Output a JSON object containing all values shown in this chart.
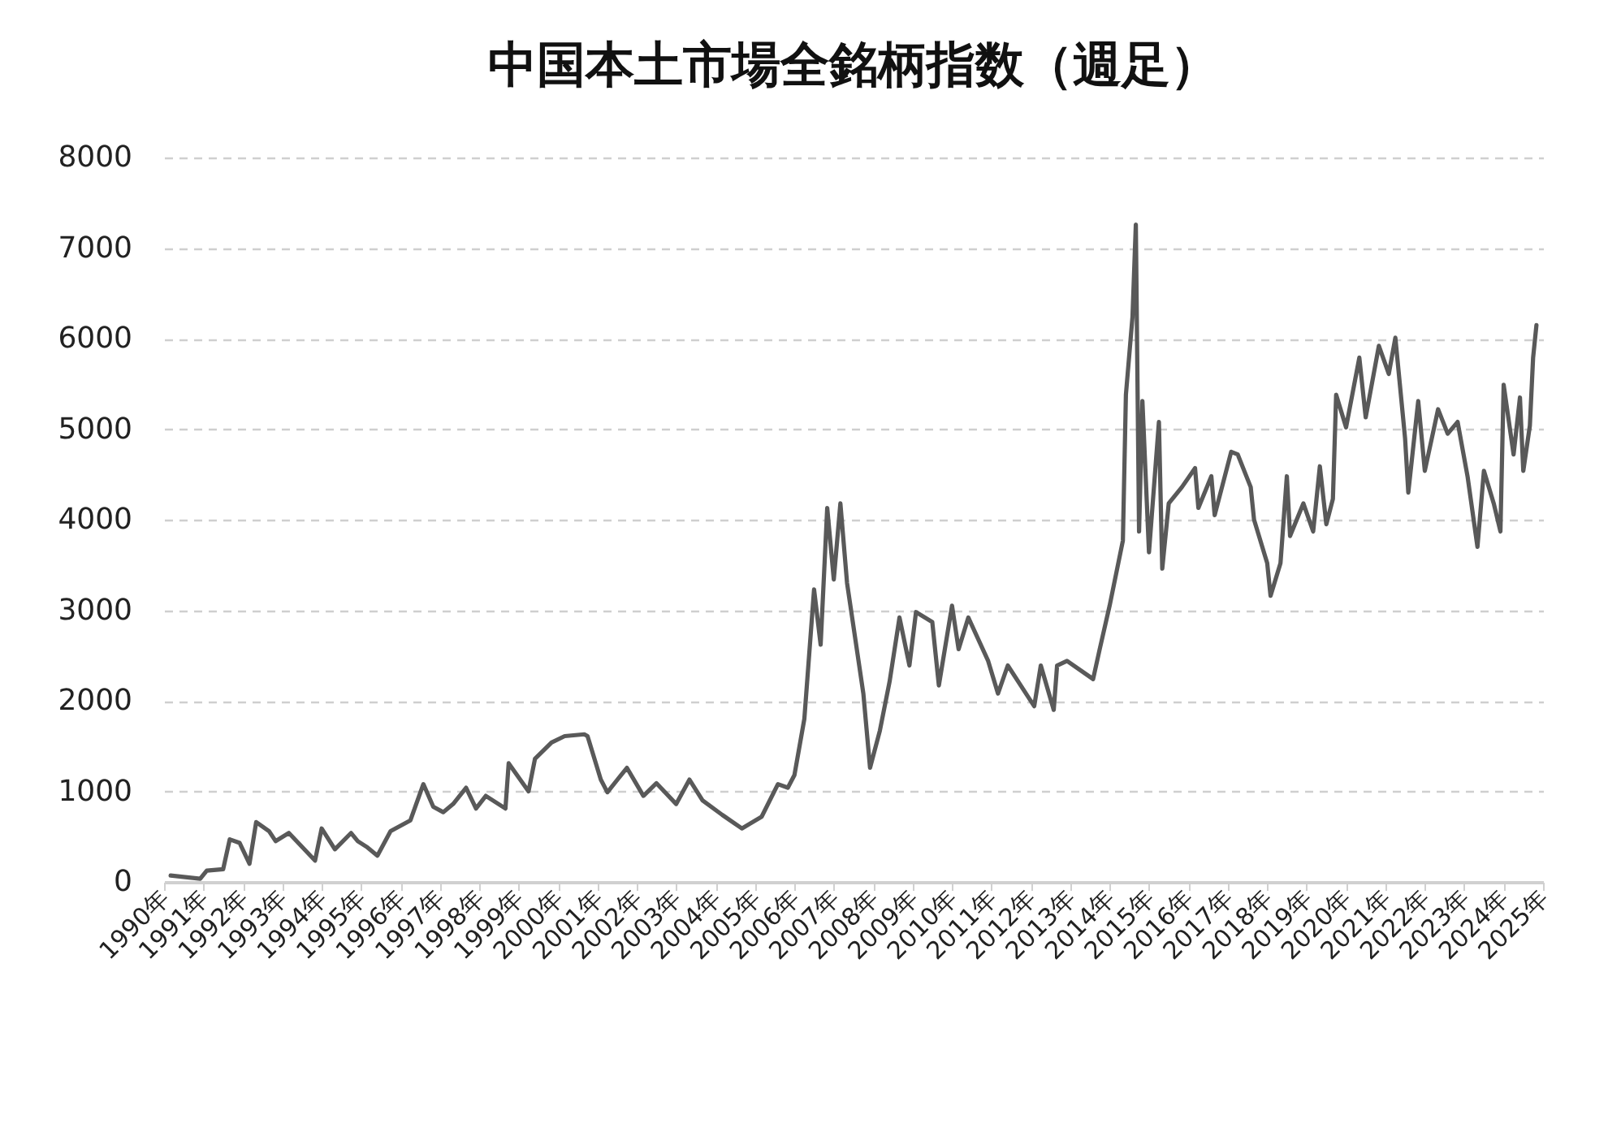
{
  "chart_data": {
    "type": "line",
    "title": "中国本土市場全銘柄指数（週足）",
    "x": [
      "1990-12",
      "1991-09",
      "1991-11",
      "1992-04",
      "1992-06",
      "1992-09",
      "1992-12",
      "1993-02",
      "1993-06",
      "1993-08",
      "1993-12",
      "1994-08",
      "1994-10",
      "1995-02",
      "1995-07",
      "1995-09",
      "1995-12",
      "1996-03",
      "1996-07",
      "1997-01",
      "1997-05",
      "1997-08",
      "1997-11",
      "1998-02",
      "1998-06",
      "1998-09",
      "1998-12",
      "1999-06",
      "1999-07",
      "2000-01",
      "2000-03",
      "2000-08",
      "2000-12",
      "2001-06",
      "2001-07",
      "2001-11",
      "2002-01",
      "2002-07",
      "2002-12",
      "2003-04",
      "2003-10",
      "2004-02",
      "2004-06",
      "2004-12",
      "2005-06",
      "2005-12",
      "2006-05",
      "2006-08",
      "2006-10",
      "2007-01",
      "2007-04",
      "2007-06",
      "2007-08",
      "2007-10",
      "2007-12",
      "2008-02",
      "2008-07",
      "2008-09",
      "2008-12",
      "2009-03",
      "2009-06",
      "2009-09",
      "2009-11",
      "2010-04",
      "2010-06",
      "2010-10",
      "2010-12",
      "2011-03",
      "2011-09",
      "2011-12",
      "2012-03",
      "2012-11",
      "2013-01",
      "2013-05",
      "2013-06",
      "2013-09",
      "2014-05",
      "2014-07",
      "2014-10",
      "2015-02",
      "2015-03",
      "2015-05",
      "2015-06",
      "2015-07",
      "2015-08",
      "2015-10",
      "2016-01",
      "2016-02",
      "2016-04",
      "2016-08",
      "2016-12",
      "2017-01",
      "2017-05",
      "2017-06",
      "2017-11",
      "2018-01",
      "2018-05",
      "2018-06",
      "2018-10",
      "2018-11",
      "2019-02",
      "2019-04",
      "2019-05",
      "2019-09",
      "2019-12",
      "2020-02",
      "2020-04",
      "2020-06",
      "2020-07",
      "2020-10",
      "2021-02",
      "2021-04",
      "2021-08",
      "2021-11",
      "2022-01",
      "2022-04",
      "2022-05",
      "2022-08",
      "2022-10",
      "2023-02",
      "2023-05",
      "2023-08",
      "2023-11",
      "2024-02",
      "2024-04",
      "2024-07",
      "2024-09",
      "2024-10",
      "2025-01",
      "2025-03",
      "2025-04",
      "2025-06",
      "2025-07",
      "2025-08"
    ],
    "series": [
      {
        "color": "#595959",
        "values": [
          70,
          35,
          125,
          140,
          470,
          430,
          200,
          660,
          560,
          450,
          540,
          235,
          590,
          360,
          540,
          450,
          380,
          290,
          560,
          680,
          1080,
          830,
          770,
          860,
          1040,
          810,
          950,
          810,
          1310,
          1000,
          1360,
          1540,
          1610,
          1630,
          1610,
          1130,
          990,
          1260,
          950,
          1090,
          860,
          1130,
          900,
          740,
          590,
          720,
          1080,
          1040,
          1180,
          1800,
          3230,
          2620,
          4130,
          3340,
          4180,
          3300,
          2080,
          1260,
          1670,
          2210,
          2920,
          2390,
          2980,
          2870,
          2170,
          3050,
          2570,
          2920,
          2440,
          2080,
          2390,
          1940,
          2390,
          1900,
          2390,
          2440,
          2240,
          2570,
          3050,
          3770,
          5380,
          6240,
          7260,
          3870,
          5310,
          3640,
          5080,
          3460,
          4180,
          4360,
          4570,
          4130,
          4480,
          4050,
          4750,
          4720,
          4360,
          4000,
          3520,
          3160,
          3520,
          4480,
          3820,
          4180,
          3870,
          4590,
          3950,
          4230,
          5380,
          5020,
          5790,
          5130,
          5920,
          5610,
          6010,
          4900,
          4300,
          5310,
          4540,
          5220,
          4950,
          5080,
          4480,
          3700,
          4540,
          4180,
          3870,
          5490,
          4720,
          5350,
          4540,
          5040,
          5790,
          6150
        ]
      }
    ],
    "xlim": [
      "1990-10",
      "2025-10"
    ],
    "xticks": [
      {
        "value": "1990-10",
        "label": "1990年"
      },
      {
        "value": "1991-10",
        "label": "1991年"
      },
      {
        "value": "1992-10",
        "label": "1992年"
      },
      {
        "value": "1993-10",
        "label": "1993年"
      },
      {
        "value": "1994-10",
        "label": "1994年"
      },
      {
        "value": "1995-10",
        "label": "1995年"
      },
      {
        "value": "1996-10",
        "label": "1996年"
      },
      {
        "value": "1997-10",
        "label": "1997年"
      },
      {
        "value": "1998-10",
        "label": "1998年"
      },
      {
        "value": "1999-10",
        "label": "1999年"
      },
      {
        "value": "2000-10",
        "label": "2000年"
      },
      {
        "value": "2001-10",
        "label": "2001年"
      },
      {
        "value": "2002-10",
        "label": "2002年"
      },
      {
        "value": "2003-10",
        "label": "2003年"
      },
      {
        "value": "2004-10",
        "label": "2004年"
      },
      {
        "value": "2005-10",
        "label": "2005年"
      },
      {
        "value": "2006-10",
        "label": "2006年"
      },
      {
        "value": "2007-10",
        "label": "2007年"
      },
      {
        "value": "2008-10",
        "label": "2008年"
      },
      {
        "value": "2009-10",
        "label": "2009年"
      },
      {
        "value": "2010-10",
        "label": "2010年"
      },
      {
        "value": "2011-10",
        "label": "2011年"
      },
      {
        "value": "2012-10",
        "label": "2012年"
      },
      {
        "value": "2013-10",
        "label": "2013年"
      },
      {
        "value": "2014-10",
        "label": "2014年"
      },
      {
        "value": "2015-10",
        "label": "2015年"
      },
      {
        "value": "2016-10",
        "label": "2016年"
      },
      {
        "value": "2017-10",
        "label": "2017年"
      },
      {
        "value": "2018-10",
        "label": "2018年"
      },
      {
        "value": "2019-10",
        "label": "2019年"
      },
      {
        "value": "2020-10",
        "label": "2020年"
      },
      {
        "value": "2021-10",
        "label": "2021年"
      },
      {
        "value": "2022-10",
        "label": "2022年"
      },
      {
        "value": "2023-10",
        "label": "2023年"
      },
      {
        "value": "2024-10",
        "label": "2024年"
      },
      {
        "value": "2025-10",
        "label": "2025年"
      }
    ],
    "ylim": [
      0,
      8000
    ],
    "yticks": [
      0,
      1000,
      2000,
      3000,
      4000,
      5000,
      6000,
      7000,
      8000
    ],
    "grid": "y"
  }
}
